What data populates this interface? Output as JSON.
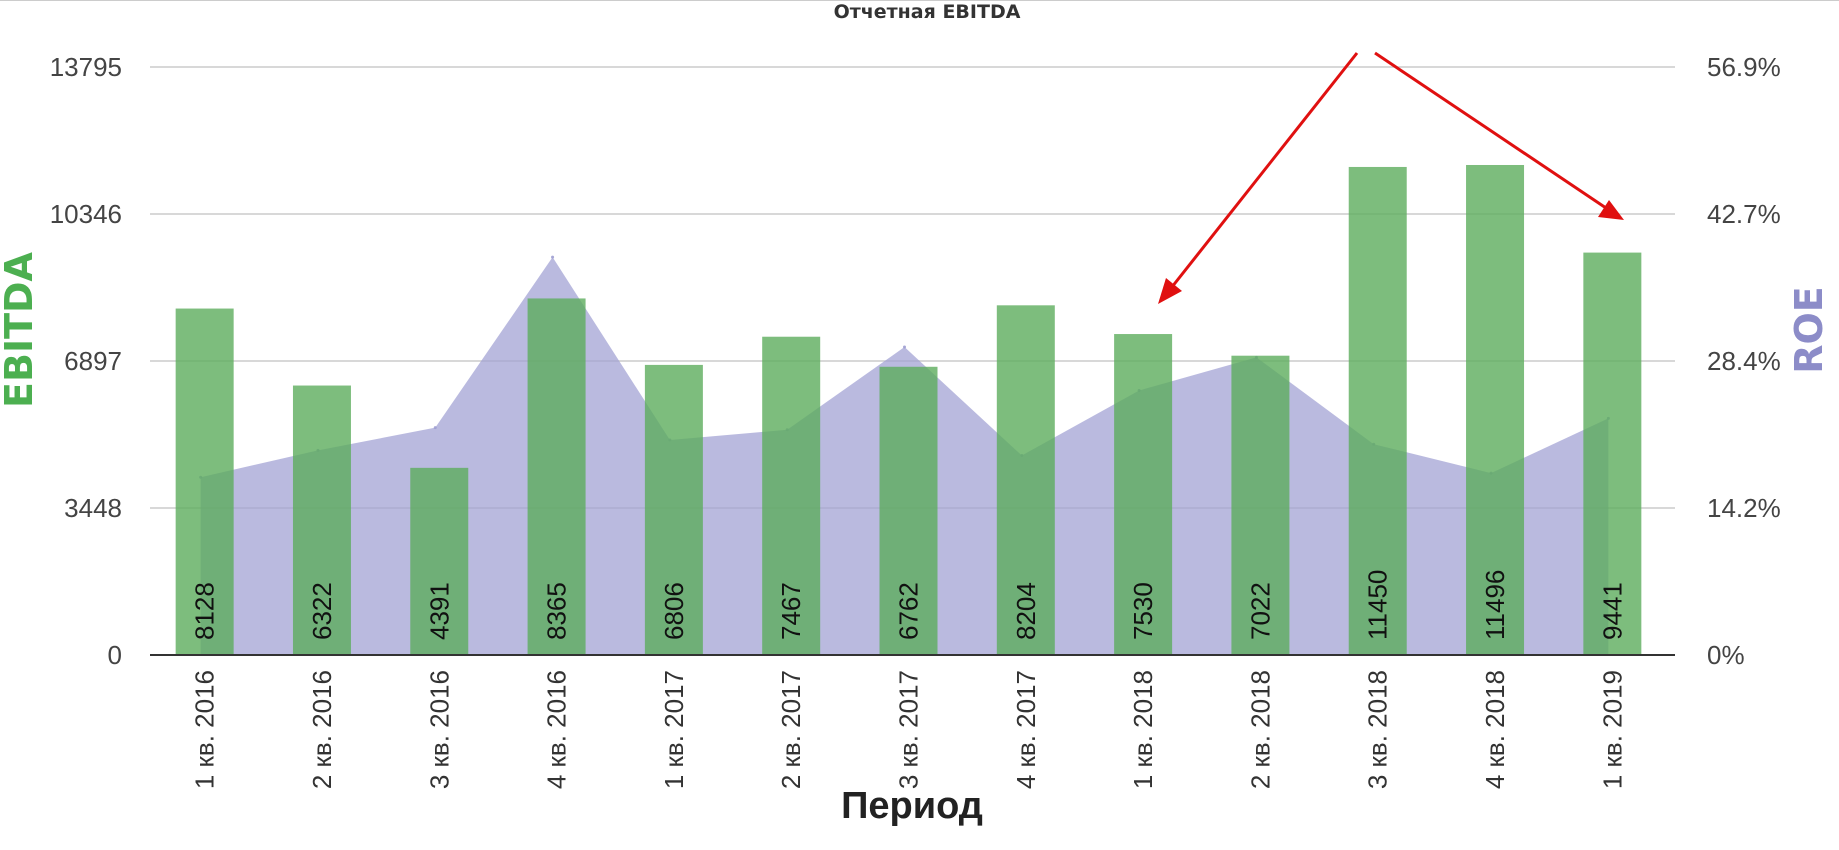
{
  "chart_data": {
    "type": "bar",
    "title": "Отчетная EBITDA",
    "xlabel": "Период",
    "ylabel": "EBITDA",
    "y2label": "ROE",
    "categories": [
      "1 кв. 2016",
      "2 кв. 2016",
      "3 кв. 2016",
      "4 кв. 2016",
      "1 кв. 2017",
      "2 кв. 2017",
      "3 кв. 2017",
      "4 кв. 2017",
      "1 кв. 2018",
      "2 кв. 2018",
      "3 кв. 2018",
      "4 кв. 2018",
      "1 кв. 2019"
    ],
    "left_axis": {
      "ticks": [
        "0",
        "3448",
        "6897",
        "10346",
        "13795"
      ],
      "ylim": [
        0,
        13795
      ]
    },
    "right_axis": {
      "ticks": [
        "0%",
        "14.2%",
        "28.4%",
        "42.7%",
        "56.9%"
      ],
      "ylim": [
        0,
        56.9
      ]
    },
    "series": [
      {
        "kind": "bar",
        "axis": "left",
        "values": [
          8128,
          6322,
          4391,
          8365,
          6806,
          7467,
          6762,
          8204,
          7530,
          7022,
          11450,
          11496,
          9441
        ],
        "color": "#5cad5c"
      },
      {
        "kind": "area",
        "axis": "right",
        "values": [
          17.2,
          19.8,
          22.0,
          38.5,
          20.8,
          21.8,
          29.8,
          19.3,
          25.6,
          28.8,
          20.4,
          17.6,
          22.9
        ],
        "color": "#9f9fd2"
      }
    ],
    "grid": true,
    "colors": {
      "ebitda_label": "#4caf50",
      "roe_label": "#8c8cc8",
      "axis": "#333333",
      "grid": "#cccccc",
      "arrow": "#e01010"
    }
  }
}
